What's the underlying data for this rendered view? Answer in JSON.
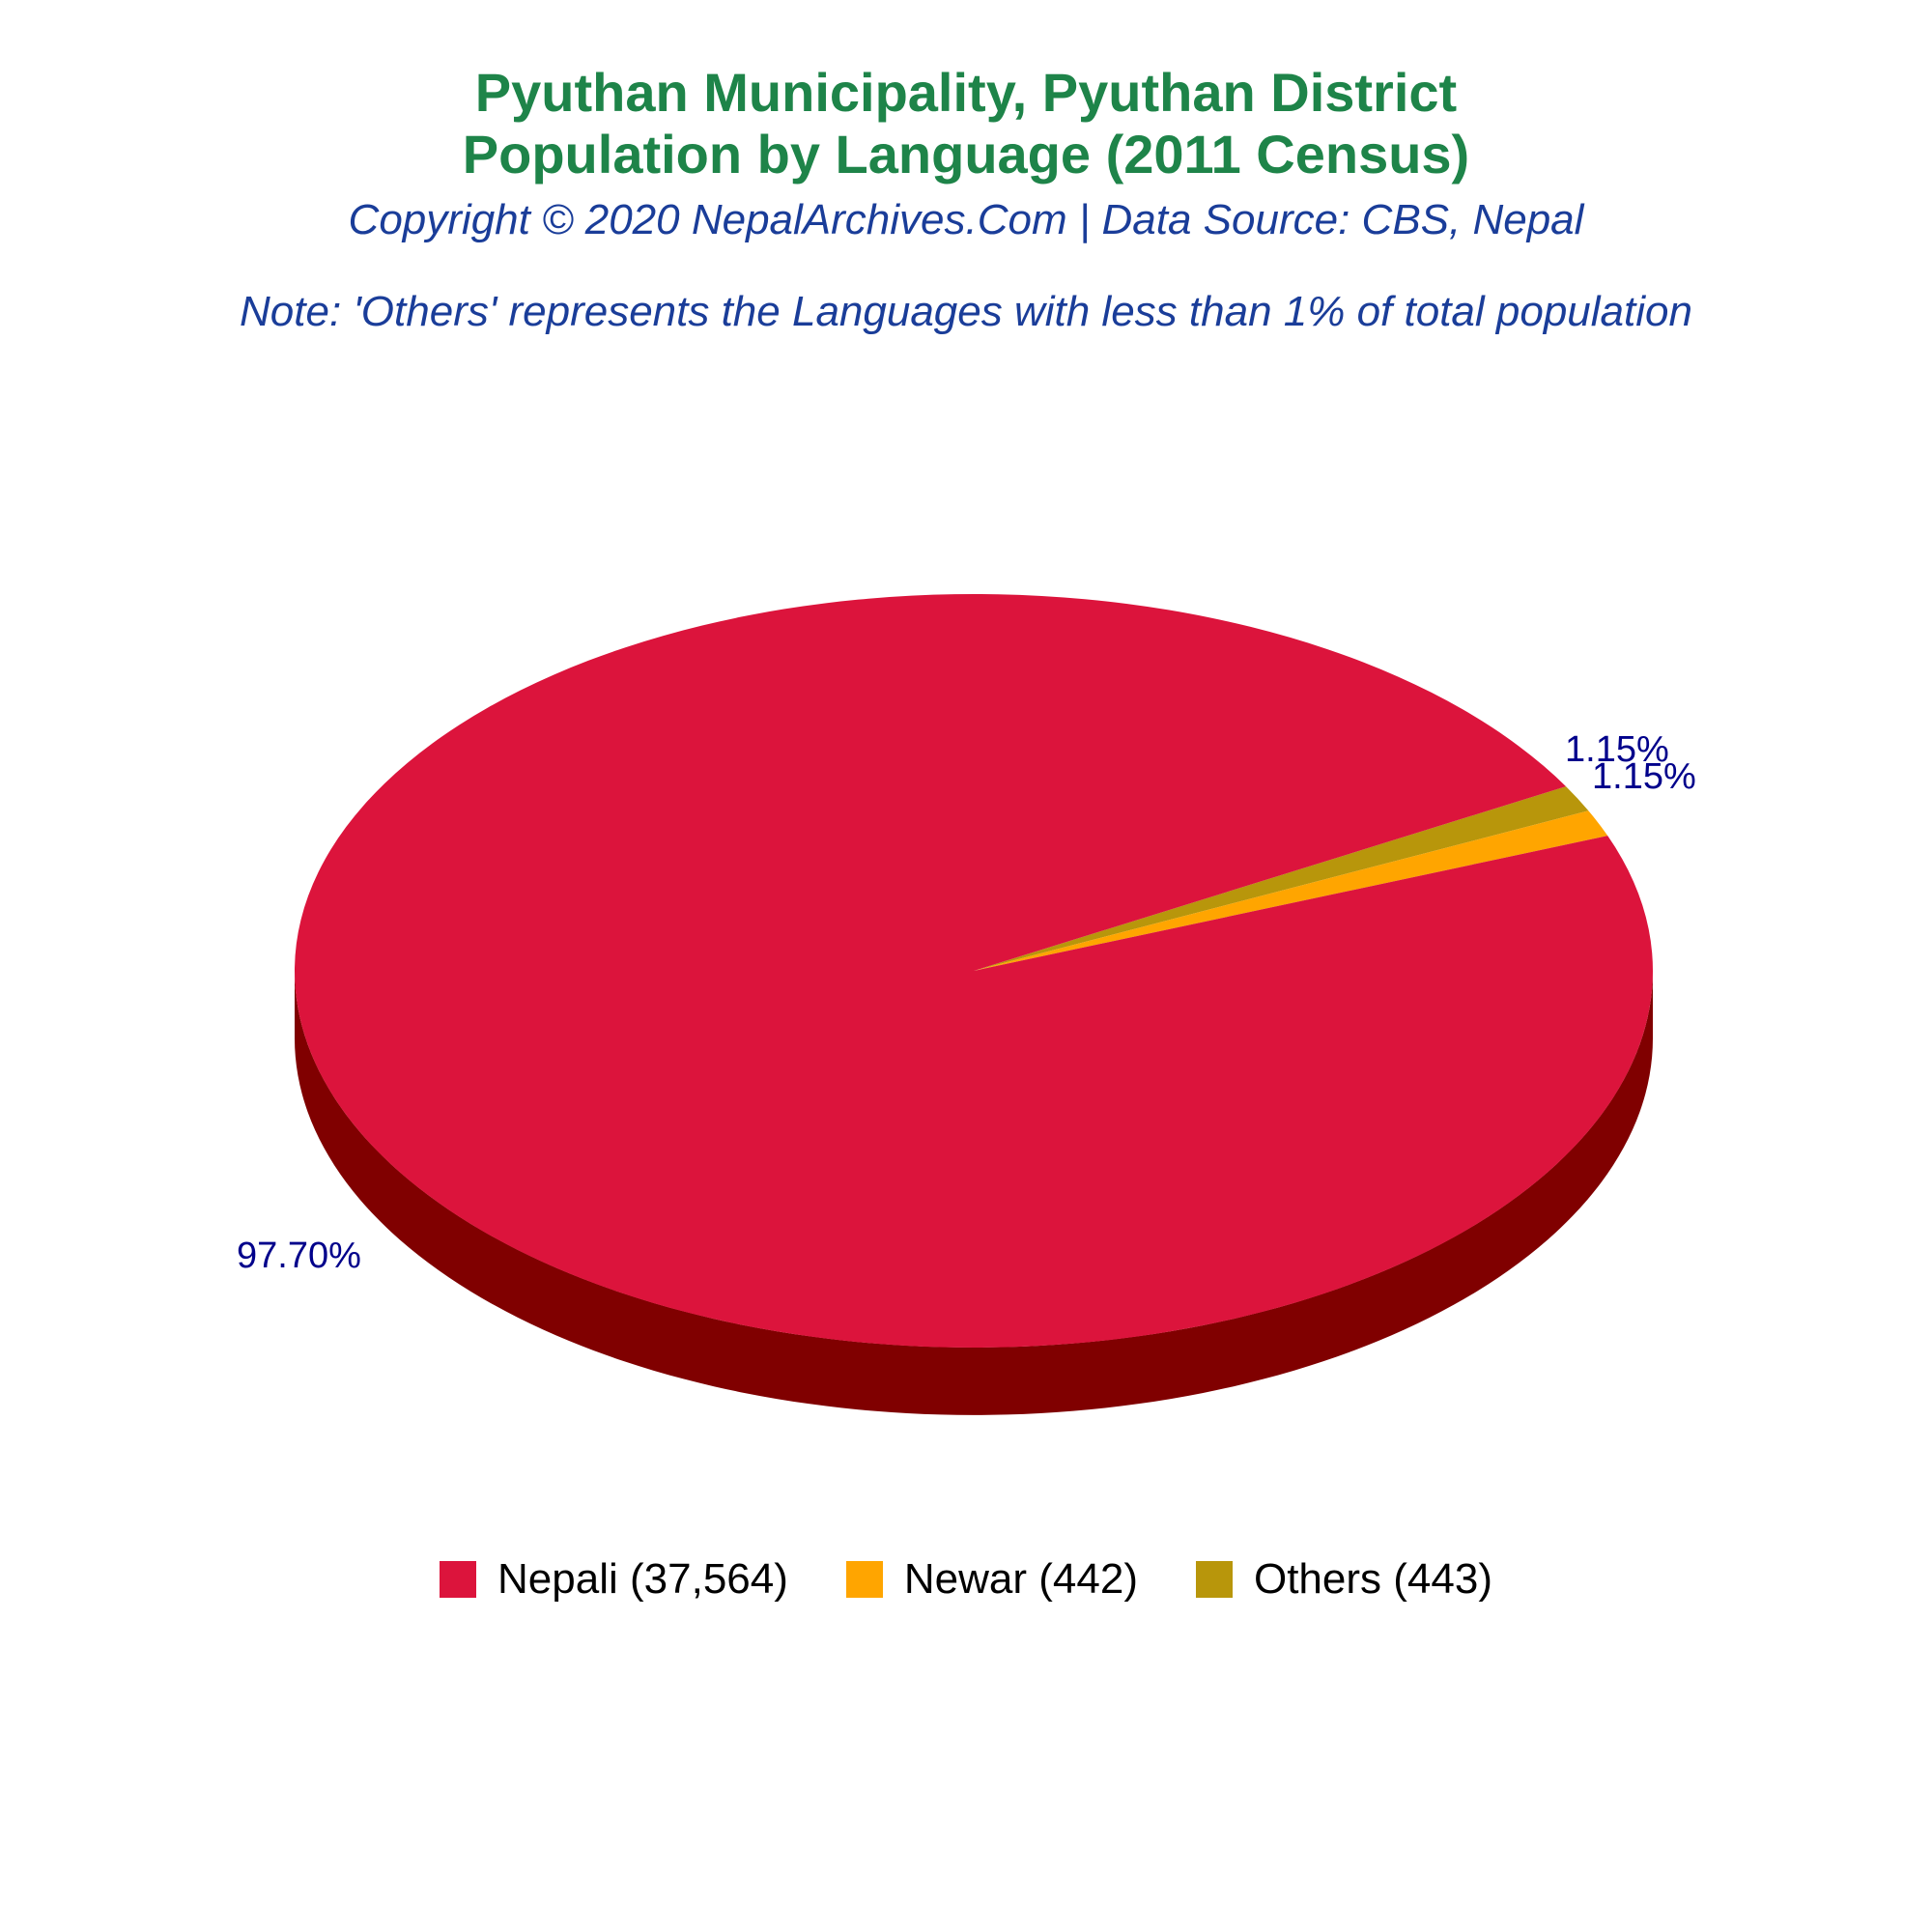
{
  "title_line1": "Pyuthan Municipality, Pyuthan District",
  "title_line2": "Population by Language (2011 Census)",
  "subtitle": "Copyright © 2020 NepalArchives.Com | Data Source: CBS, Nepal",
  "note": "Note: 'Others' represents the Languages with less than 1% of total population",
  "chart_data": {
    "type": "pie",
    "style": "3d",
    "slices": [
      {
        "label": "Nepali (37,564)",
        "value": 37564,
        "percent_label": "97.70%",
        "color": "#dc143c",
        "side_color": "#800000"
      },
      {
        "label": "Newar (442)",
        "value": 442,
        "percent_label": "1.15%",
        "color": "#ffa500",
        "side_color": "#b36f00"
      },
      {
        "label": "Others (443)",
        "value": 443,
        "percent_label": "1.15%",
        "color": "#b8960b",
        "side_color": "#7a6308"
      }
    ],
    "legend_position": "bottom"
  }
}
